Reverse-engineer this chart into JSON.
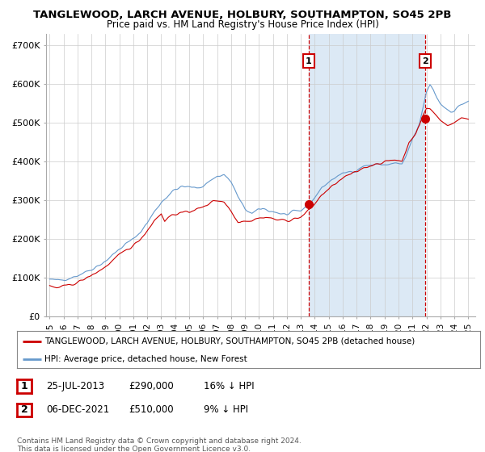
{
  "title": "TANGLEWOOD, LARCH AVENUE, HOLBURY, SOUTHAMPTON, SO45 2PB",
  "subtitle": "Price paid vs. HM Land Registry's House Price Index (HPI)",
  "legend_line1": "TANGLEWOOD, LARCH AVENUE, HOLBURY, SOUTHAMPTON, SO45 2PB (detached house)",
  "legend_line2": "HPI: Average price, detached house, New Forest",
  "annotation1": {
    "label": "1",
    "date": "25-JUL-2013",
    "price": "£290,000",
    "pct": "16% ↓ HPI",
    "x_year": 2013.56,
    "y_val": 290000
  },
  "annotation2": {
    "label": "2",
    "date": "06-DEC-2021",
    "price": "£510,000",
    "pct": "9% ↓ HPI",
    "x_year": 2021.92,
    "y_val": 510000
  },
  "footer": "Contains HM Land Registry data © Crown copyright and database right 2024.\nThis data is licensed under the Open Government Licence v3.0.",
  "ylabel_ticks": [
    "£0",
    "£100K",
    "£200K",
    "£300K",
    "£400K",
    "£500K",
    "£600K",
    "£700K"
  ],
  "ytick_vals": [
    0,
    100000,
    200000,
    300000,
    400000,
    500000,
    600000,
    700000
  ],
  "ylim": [
    0,
    730000
  ],
  "xlim_start": 1994.75,
  "xlim_end": 2025.5,
  "red_color": "#cc0000",
  "blue_color": "#6699cc",
  "shade_color": "#dce9f5",
  "background_color": "#ffffff",
  "grid_color": "#cccccc"
}
